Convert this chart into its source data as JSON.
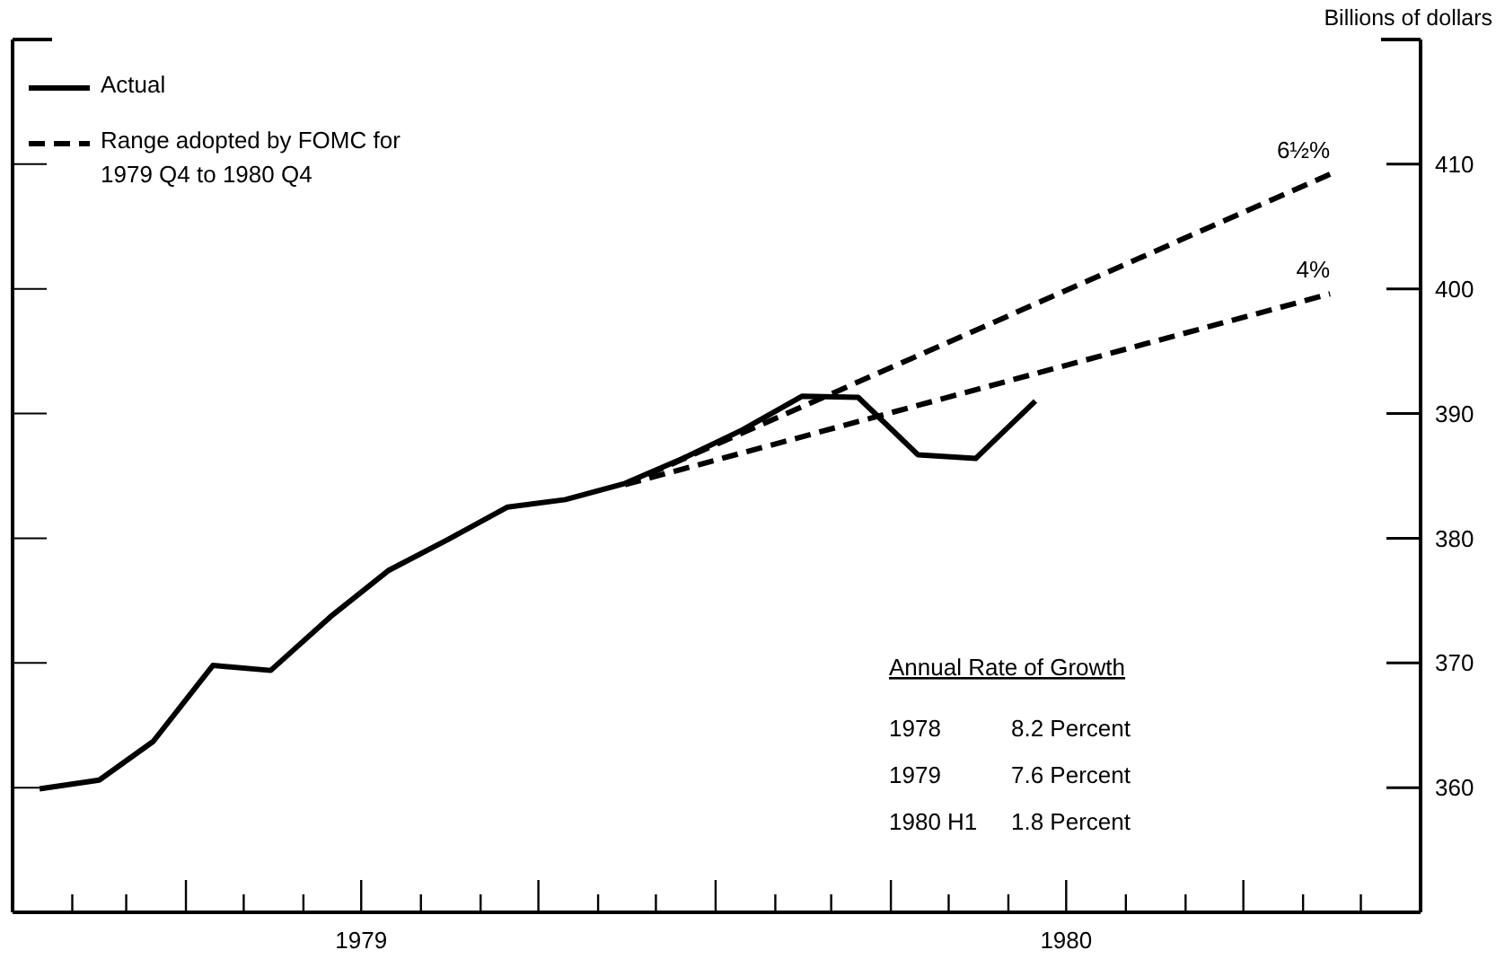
{
  "chart_data": {
    "type": "line",
    "ylabel": "Billions of dollars",
    "legend": "top left",
    "grid": false,
    "xlim": [
      "1979-01-01",
      "1981-01-01"
    ],
    "xticks": [
      {
        "value": "1979-02-01",
        "label": null
      },
      {
        "value": "1979-03-01",
        "label": null
      },
      {
        "value": "1979-04-01",
        "label": null
      },
      {
        "value": "1979-05-01",
        "label": null
      },
      {
        "value": "1979-06-01",
        "label": null
      },
      {
        "value": "1979-07-01",
        "label": "1979"
      },
      {
        "value": "1979-08-01",
        "label": null
      },
      {
        "value": "1979-09-01",
        "label": null
      },
      {
        "value": "1979-10-01",
        "label": null
      },
      {
        "value": "1979-11-01",
        "label": null
      },
      {
        "value": "1979-12-01",
        "label": null
      },
      {
        "value": "1980-01-01",
        "label": null
      },
      {
        "value": "1980-02-01",
        "label": null
      },
      {
        "value": "1980-03-01",
        "label": null
      },
      {
        "value": "1980-04-01",
        "label": null
      },
      {
        "value": "1980-05-01",
        "label": null
      },
      {
        "value": "1980-06-01",
        "label": null
      },
      {
        "value": "1980-07-01",
        "label": "1980"
      },
      {
        "value": "1980-08-01",
        "label": null
      },
      {
        "value": "1980-09-01",
        "label": null
      },
      {
        "value": "1980-10-01",
        "label": null
      },
      {
        "value": "1980-11-01",
        "label": null
      },
      {
        "value": "1980-12-01",
        "label": null
      }
    ],
    "ylim": [
      350,
      420
    ],
    "yticks": [
      360,
      370,
      380,
      390,
      400,
      410
    ],
    "series": [
      {
        "name": "Actual",
        "color": "#000000",
        "line_style": "solid",
        "x": [
          "1979-01-15",
          "1979-02-15",
          "1979-03-15",
          "1979-04-15",
          "1979-05-15",
          "1979-06-15",
          "1979-07-15",
          "1979-08-15",
          "1979-09-15",
          "1979-10-15",
          "1979-11-15",
          "1979-12-15",
          "1980-01-15",
          "1980-02-15",
          "1980-03-15",
          "1980-04-15",
          "1980-05-15",
          "1980-06-15"
        ],
        "values": [
          359.9,
          360.6,
          363.7,
          369.8,
          369.4,
          373.7,
          377.4,
          379.9,
          382.5,
          383.1,
          384.4,
          386.4,
          388.7,
          391.4,
          391.3,
          386.7,
          386.4,
          391.0
        ]
      },
      {
        "name": "Range adopted by FOMC for 1979 Q4 to 1980 Q4",
        "color": "#000000",
        "line_style": "dashed",
        "x": [
          "1979-11-15",
          "1980-11-15"
        ],
        "values": [
          384.3,
          409.2
        ]
      },
      {
        "color": "#000000",
        "line_style": "dashed",
        "x": [
          "1979-11-15",
          "1980-11-15"
        ],
        "values": [
          384.3,
          399.6
        ]
      }
    ],
    "annotations": [
      {
        "text": "6½%",
        "x": "1980-11-15",
        "y": 409.2
      },
      {
        "text": "4%",
        "x": "1980-11-15",
        "y": 399.6
      },
      "Annual Rate of Growth",
      "1978",
      "8.2 Percent",
      "1979",
      "7.6 Percent",
      "1980 H1",
      "1.8 Percent"
    ]
  }
}
